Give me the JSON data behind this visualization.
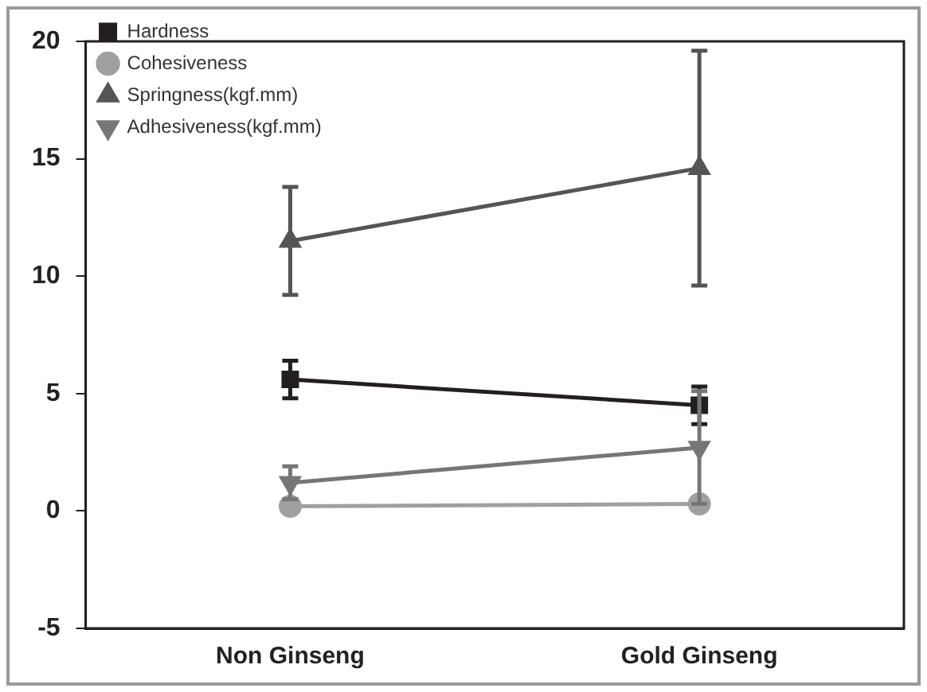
{
  "chart_data": {
    "type": "line",
    "categories": [
      "Non Ginseng",
      "Gold Ginseng"
    ],
    "series": [
      {
        "name": "Hardness",
        "color": "#231f20",
        "marker": "square",
        "values": [
          5.6,
          4.5
        ],
        "errors": [
          0.8,
          0.8
        ]
      },
      {
        "name": "Cohesiveness",
        "color": "#a0a0a0",
        "marker": "circle",
        "values": [
          0.2,
          0.3
        ]
      },
      {
        "name": "Springness(kgf.mm)",
        "color": "#555555",
        "marker": "triangle",
        "values": [
          11.5,
          14.6
        ],
        "errors": [
          2.3,
          5
        ]
      },
      {
        "name": "Adhesiveness(kgf.mm)",
        "color": "#767676",
        "marker": "triangle_down",
        "values": [
          1.2,
          2.7
        ],
        "errors": [
          0.7,
          2.4
        ]
      }
    ],
    "ylim": [
      -5,
      20
    ],
    "yticks": [
      -5,
      0,
      5,
      10,
      15,
      20
    ],
    "grid": false,
    "legend": "top left"
  }
}
